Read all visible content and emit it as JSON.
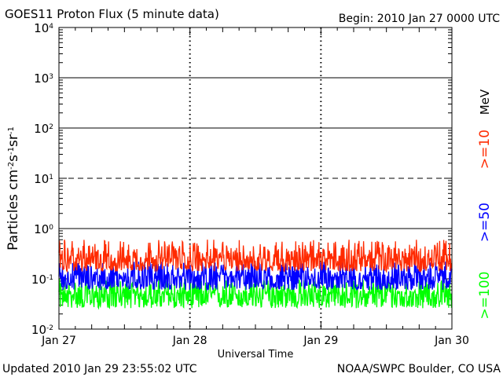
{
  "header": {
    "title": "GOES11 Proton Flux (5 minute data)",
    "begin": "Begin: 2010 Jan 27 0000 UTC"
  },
  "footer": {
    "updated": "Updated 2010 Jan 29 23:55:02 UTC",
    "credit": "NOAA/SWPC Boulder, CO USA"
  },
  "chart_data": {
    "type": "line",
    "title": "GOES11 Proton Flux (5 minute data)",
    "xlabel": "Universal Time",
    "ylabel": "Particles cm-2s-1sr-1",
    "ylabel_parts": {
      "main": "Particles cm",
      "e1": "-2",
      "s": "s",
      "e2": "-1",
      "sr": "sr",
      "e3": "-1"
    },
    "yscale": "log",
    "ylim": [
      0.01,
      10000
    ],
    "xlim": [
      0,
      3
    ],
    "x_tick_labels": [
      "Jan 27",
      "Jan 28",
      "Jan 29",
      "Jan 30"
    ],
    "y_tick_labels": [
      {
        "base": "10",
        "exp": "-2"
      },
      {
        "base": "10",
        "exp": "-1"
      },
      {
        "base": "10",
        "exp": "0"
      },
      {
        "base": "10",
        "exp": "1"
      },
      {
        "base": "10",
        "exp": "2"
      },
      {
        "base": "10",
        "exp": "3"
      },
      {
        "base": "10",
        "exp": "4"
      }
    ],
    "unit_label": "MeV",
    "reference_lines": [
      {
        "value": 1,
        "style": "solid"
      },
      {
        "value": 10,
        "style": "dashed"
      },
      {
        "value": 100,
        "style": "solid"
      },
      {
        "value": 1000,
        "style": "solid"
      }
    ],
    "series": [
      {
        "name": ">=10",
        "color": "#ff2a00",
        "mean": 0.25,
        "min": 0.14,
        "max": 0.6
      },
      {
        "name": ">=50",
        "color": "#0000ff",
        "mean": 0.11,
        "min": 0.06,
        "max": 0.22
      },
      {
        "name": ">=100",
        "color": "#00ff00",
        "mean": 0.05,
        "min": 0.026,
        "max": 0.1
      }
    ]
  }
}
